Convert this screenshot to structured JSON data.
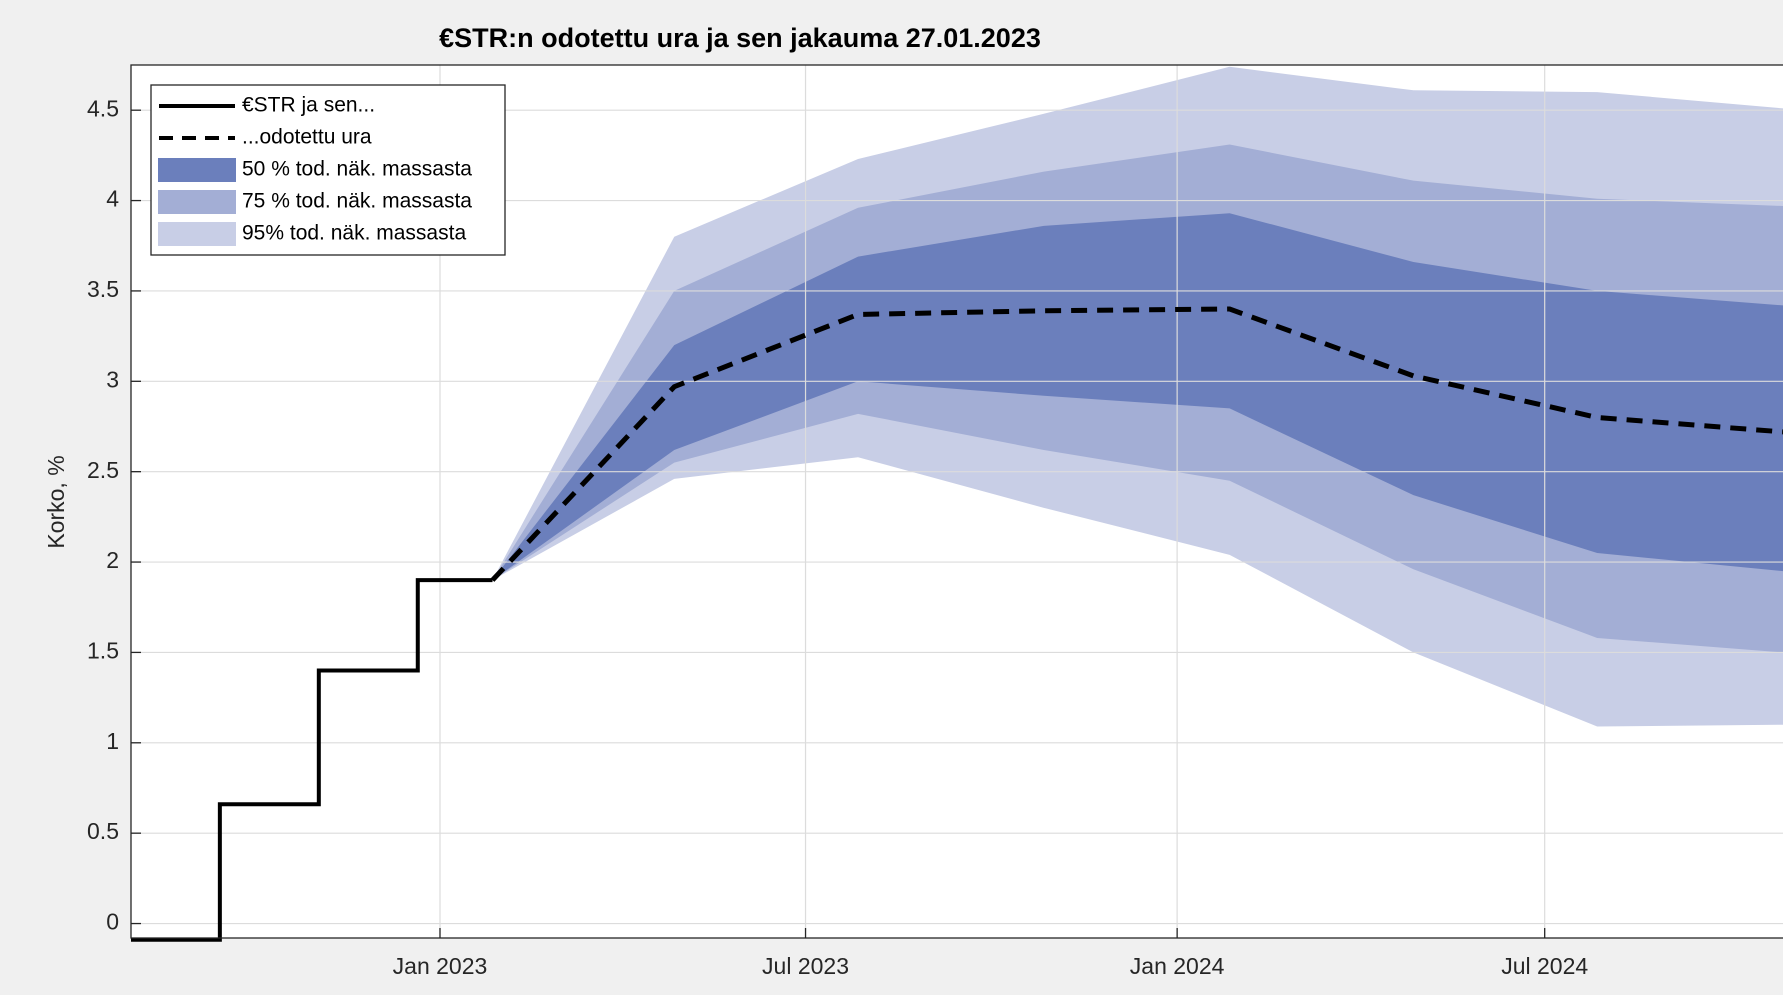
{
  "chart_data": {
    "type": "line",
    "title": "€STR:n odotettu ura ja sen jakauma  27.01.2023",
    "ylabel": "Korko, %",
    "xlim": [
      "2022-08-01",
      "2024-10-27"
    ],
    "ylim": [
      -0.08,
      4.75
    ],
    "xticks": [
      {
        "value": "2023-01-01",
        "label": "Jan 2023"
      },
      {
        "value": "2023-07-01",
        "label": "Jul 2023"
      },
      {
        "value": "2024-01-01",
        "label": "Jan 2024"
      },
      {
        "value": "2024-07-01",
        "label": "Jul 2024"
      }
    ],
    "yticks": [
      0,
      0.5,
      1,
      1.5,
      2,
      2.5,
      3,
      3.5,
      4,
      4.5
    ],
    "grid": true,
    "legend": "northwest",
    "history": {
      "name": "€STR ja sen...",
      "color": "#000000",
      "x": [
        "2022-08-01",
        "2022-09-14",
        "2022-09-14",
        "2022-11-02",
        "2022-11-02",
        "2022-12-21",
        "2022-12-21",
        "2023-01-27"
      ],
      "values": [
        -0.09,
        -0.09,
        0.66,
        0.66,
        1.4,
        1.4,
        1.9,
        1.9
      ]
    },
    "forecast": {
      "name": "...odotettu ura",
      "color": "#000000",
      "x": [
        "2023-01-27",
        "2023-04-27",
        "2023-07-27",
        "2023-10-27",
        "2024-01-27",
        "2024-04-27",
        "2024-07-27",
        "2024-10-27"
      ],
      "values": [
        1.9,
        2.97,
        3.37,
        3.39,
        3.4,
        3.03,
        2.8,
        2.72
      ]
    },
    "bands": [
      {
        "name": "50 % tod. näk. massasta",
        "color": "#6b7fbc",
        "upper": [
          1.9,
          3.2,
          3.69,
          3.86,
          3.93,
          3.66,
          3.5,
          3.42
        ],
        "lower": [
          1.9,
          2.62,
          3.0,
          2.92,
          2.85,
          2.37,
          2.05,
          1.95
        ]
      },
      {
        "name": "75 % tod. näk. massasta",
        "color": "#a3aed5",
        "upper": [
          1.9,
          3.5,
          3.96,
          4.16,
          4.31,
          4.11,
          4.01,
          3.97
        ],
        "lower": [
          1.9,
          2.55,
          2.82,
          2.62,
          2.45,
          1.96,
          1.58,
          1.5
        ]
      },
      {
        "name": "95% tod. näk. massasta",
        "color": "#c8cee6",
        "upper": [
          1.9,
          3.8,
          4.23,
          4.48,
          4.74,
          4.61,
          4.6,
          4.51
        ],
        "lower": [
          1.9,
          2.46,
          2.58,
          2.3,
          2.04,
          1.5,
          1.09,
          1.1
        ]
      }
    ]
  }
}
